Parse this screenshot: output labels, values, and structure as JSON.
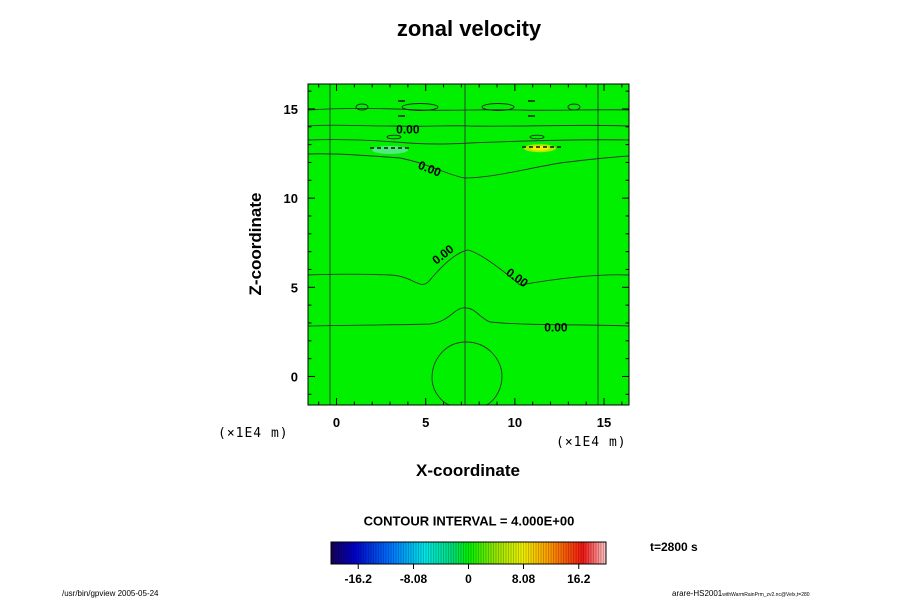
{
  "chart_data": {
    "type": "heatmap",
    "title": "zonal velocity",
    "xlabel": "X-coordinate",
    "ylabel": "Z-coordinate",
    "x_unit": "(×1E4 m)",
    "y_unit": "(×1E4 m)",
    "xlim": [
      -1.6,
      16.4
    ],
    "ylim": [
      -1.6,
      16.4
    ],
    "x_ticks": [
      0,
      5,
      10,
      15
    ],
    "y_ticks": [
      0,
      5,
      10,
      15
    ],
    "x_tick_labels": [
      "0",
      "5",
      "10",
      "15"
    ],
    "y_tick_labels": [
      "0",
      "5",
      "10",
      "15"
    ],
    "field_fill": "#00f000",
    "contour_labels": [
      {
        "text": "0.00",
        "x": 4.0,
        "y": 13.8,
        "angle": 0
      },
      {
        "text": "0.00",
        "x": 5.2,
        "y": 11.6,
        "angle": 22
      },
      {
        "text": "0.00",
        "x": 6.0,
        "y": 6.8,
        "angle": -38
      },
      {
        "text": "0.00",
        "x": 10.1,
        "y": 5.5,
        "angle": 35
      },
      {
        "text": "0.00",
        "x": 12.3,
        "y": 2.7,
        "angle": 0
      }
    ],
    "contour_interval_text": "CONTOUR INTERVAL = 4.000E+00",
    "colorbar": {
      "min": -20.2,
      "max": 20.2,
      "ticks": [
        -16.2,
        -8.08,
        0,
        8.08,
        16.2
      ],
      "tick_labels": [
        "-16.2",
        "-8.08",
        "0",
        "8.08",
        "16.2"
      ]
    },
    "time_label": "t=2800 s",
    "footer_left": "/usr/bin/gpview 2005-05-24",
    "footer_right_main": "arare-HS2001",
    "footer_right_sub": "withWarmRainPrm_zv2.nc@Velx,t=280"
  }
}
